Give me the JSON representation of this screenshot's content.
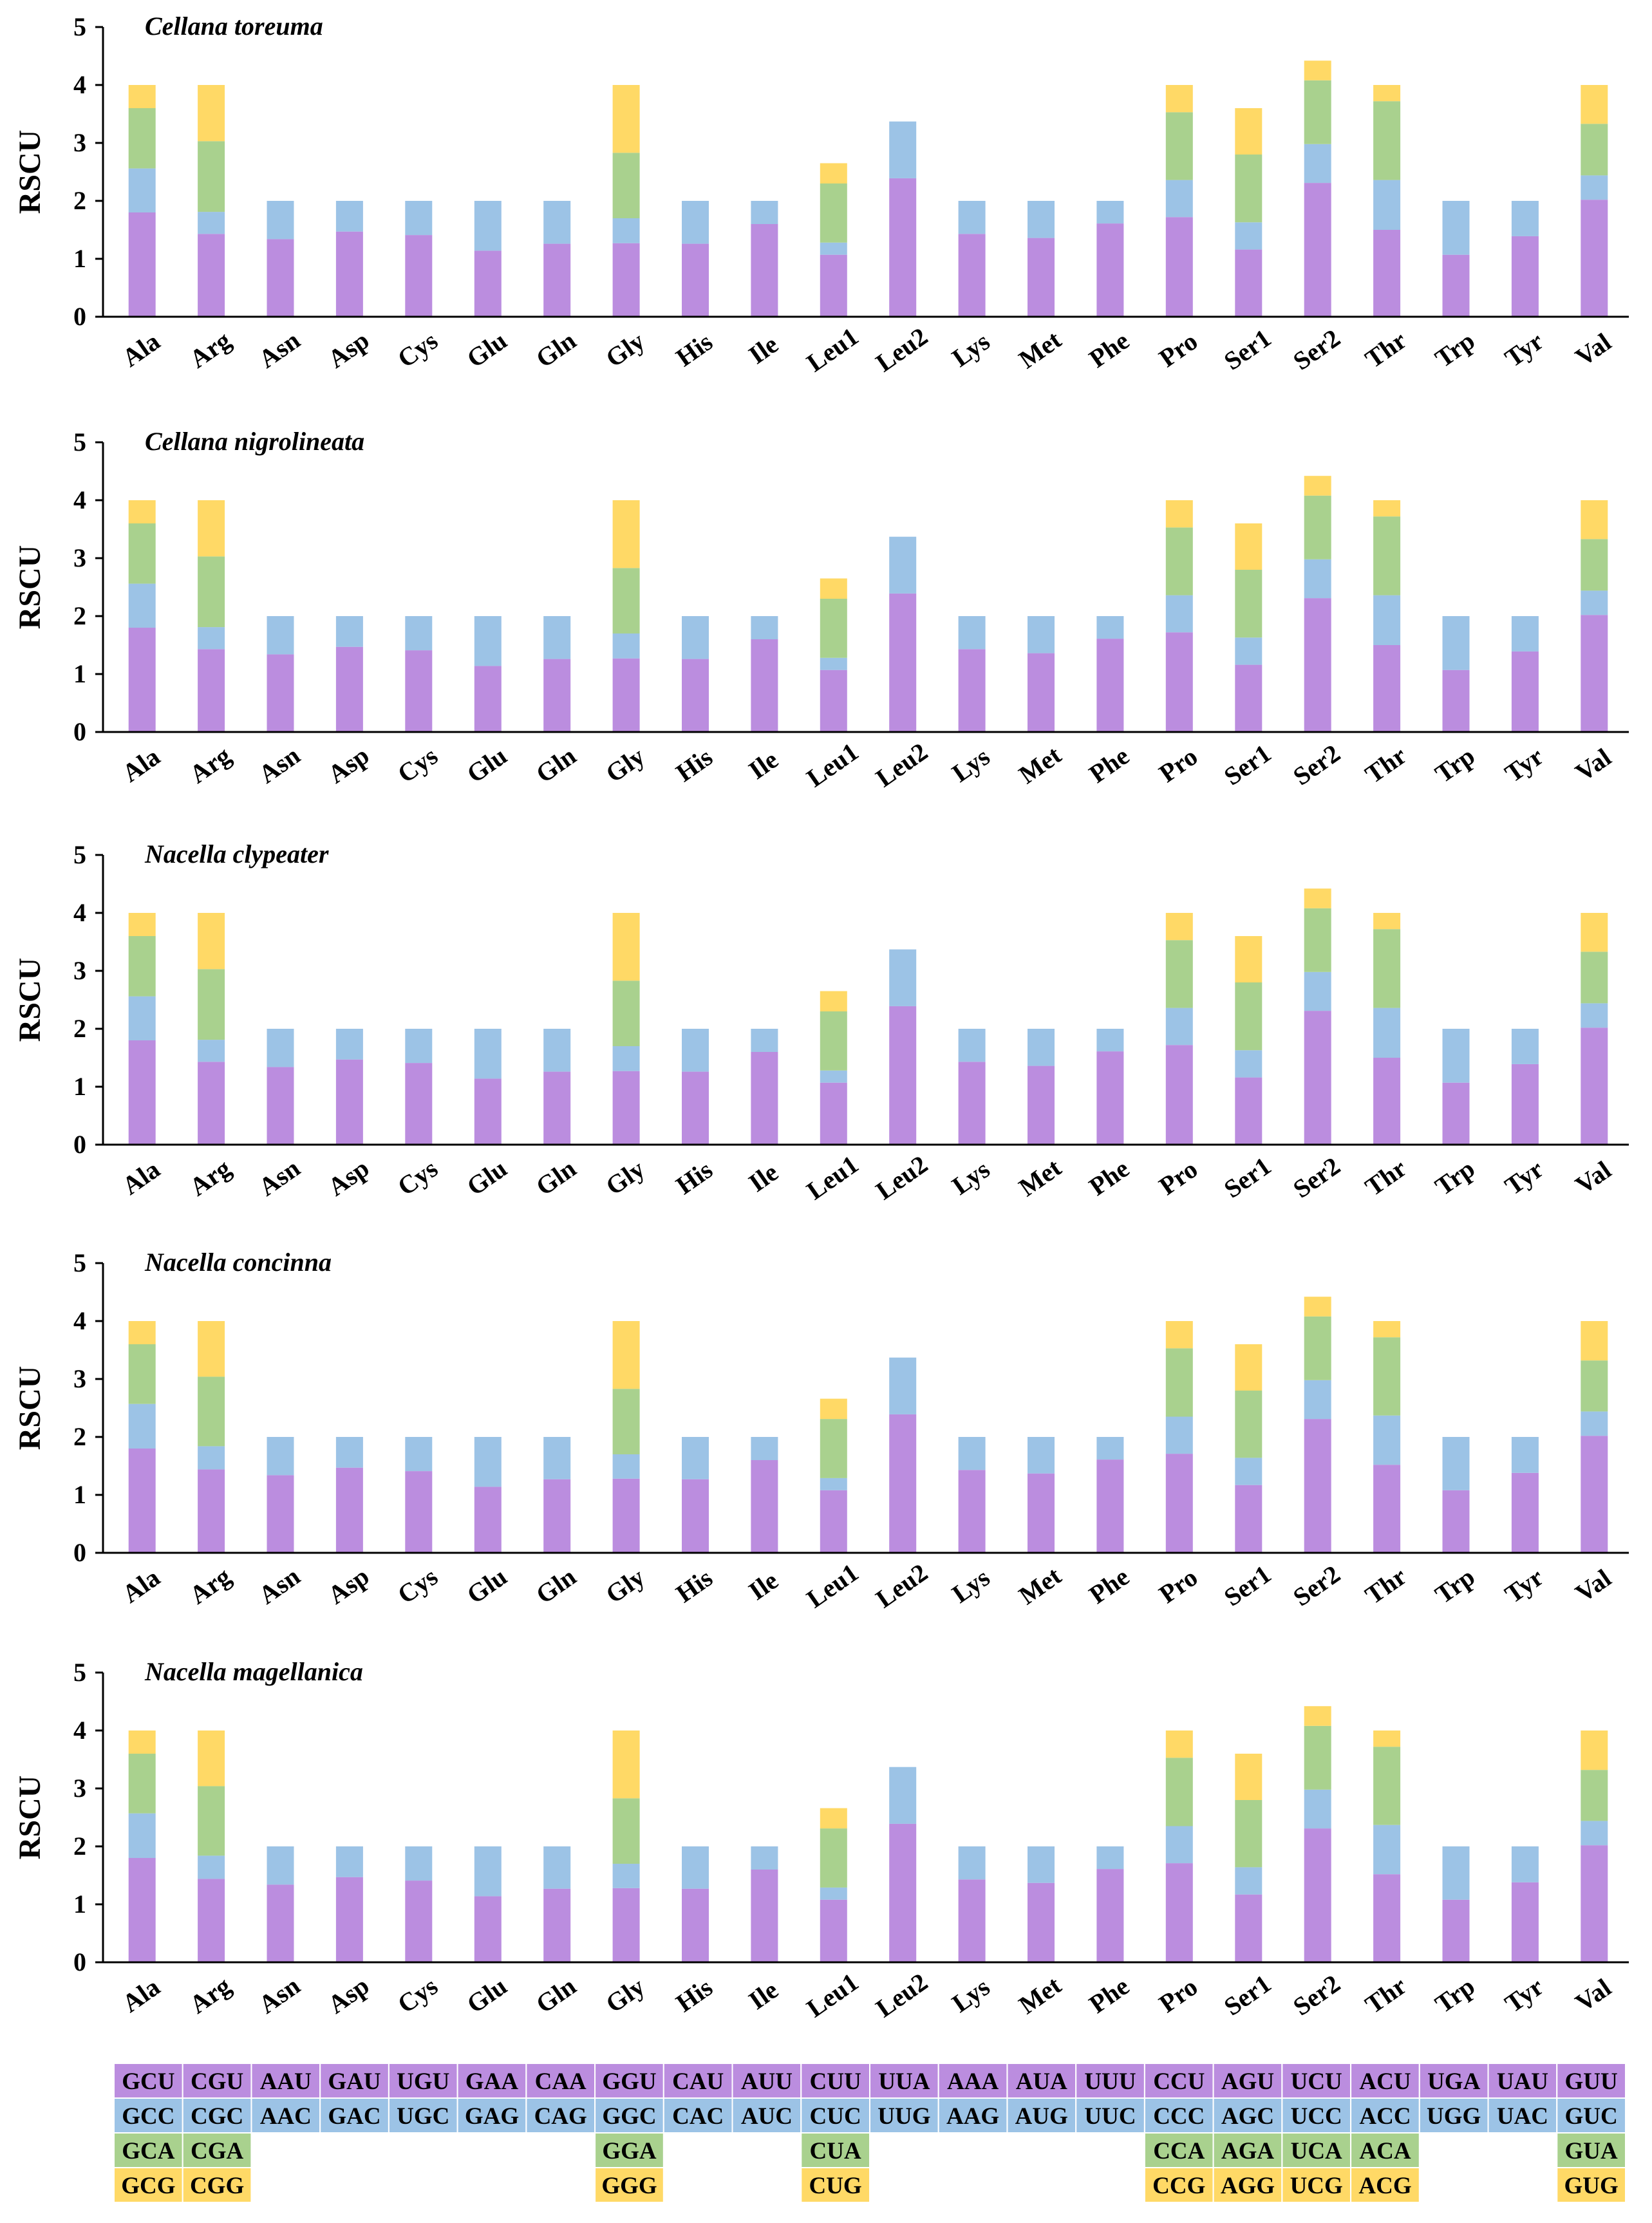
{
  "colors": {
    "purple": "#bb8ddf",
    "blue": "#9cc3e6",
    "green": "#a9d18e",
    "yellow": "#ffd966"
  },
  "ylabel": "RSCU",
  "amino_acids": [
    "Ala",
    "Arg",
    "Asn",
    "Asp",
    "Cys",
    "Glu",
    "Gln",
    "Gly",
    "His",
    "Ile",
    "Leu1",
    "Leu2",
    "Lys",
    "Met",
    "Phe",
    "Pro",
    "Ser1",
    "Ser2",
    "Thr",
    "Trp",
    "Tyr",
    "Val"
  ],
  "codon_table": [
    [
      "GCU",
      "CGU",
      "AAU",
      "GAU",
      "UGU",
      "GAA",
      "CAA",
      "GGU",
      "CAU",
      "AUU",
      "CUU",
      "UUA",
      "AAA",
      "AUA",
      "UUU",
      "CCU",
      "AGU",
      "UCU",
      "ACU",
      "UGA",
      "UAU",
      "GUU"
    ],
    [
      "GCC",
      "CGC",
      "AAC",
      "GAC",
      "UGC",
      "GAG",
      "CAG",
      "GGC",
      "CAC",
      "AUC",
      "CUC",
      "UUG",
      "AAG",
      "AUG",
      "UUC",
      "CCC",
      "AGC",
      "UCC",
      "ACC",
      "UGG",
      "UAC",
      "GUC"
    ],
    [
      "GCA",
      "CGA",
      "",
      "",
      "",
      "",
      "",
      "GGA",
      "",
      "",
      "CUA",
      "",
      "",
      "",
      "",
      "CCA",
      "AGA",
      "UCA",
      "ACA",
      "",
      "",
      "GUA"
    ],
    [
      "GCG",
      "CGG",
      "",
      "",
      "",
      "",
      "",
      "GGG",
      "",
      "",
      "CUG",
      "",
      "",
      "",
      "",
      "CCG",
      "AGG",
      "UCG",
      "ACG",
      "",
      "",
      "GUG"
    ]
  ],
  "chart_data": [
    {
      "type": "bar",
      "stacked": true,
      "title": "Cellana toreuma",
      "ylabel": "RSCU",
      "ylim": [
        0,
        5
      ],
      "yticks": [
        "0",
        "1",
        "2",
        "3",
        "4",
        "5"
      ],
      "categories": [
        "Ala",
        "Arg",
        "Asn",
        "Asp",
        "Cys",
        "Glu",
        "Gln",
        "Gly",
        "His",
        "Ile",
        "Leu1",
        "Leu2",
        "Lys",
        "Met",
        "Phe",
        "Pro",
        "Ser1",
        "Ser2",
        "Thr",
        "Trp",
        "Tyr",
        "Val"
      ],
      "stacks": [
        [
          1.8,
          0.76,
          1.04,
          0.4
        ],
        [
          1.43,
          0.38,
          1.22,
          0.97
        ],
        [
          1.34,
          0.66
        ],
        [
          1.47,
          0.53
        ],
        [
          1.41,
          0.59
        ],
        [
          1.14,
          0.86
        ],
        [
          1.26,
          0.74
        ],
        [
          1.27,
          0.43,
          1.13,
          1.17
        ],
        [
          1.26,
          0.74
        ],
        [
          1.6,
          0.4
        ],
        [
          1.07,
          0.21,
          1.02,
          0.35
        ],
        [
          2.39,
          0.98
        ],
        [
          1.43,
          0.57
        ],
        [
          1.36,
          0.64
        ],
        [
          1.61,
          0.39
        ],
        [
          1.72,
          0.64,
          1.17,
          0.47
        ],
        [
          1.16,
          0.47,
          1.17,
          0.8
        ],
        [
          2.31,
          0.67,
          1.1,
          0.34
        ],
        [
          1.5,
          0.86,
          1.36,
          0.28
        ],
        [
          1.07,
          0.93
        ],
        [
          1.39,
          0.61
        ],
        [
          2.02,
          0.42,
          0.89,
          0.67
        ]
      ]
    },
    {
      "type": "bar",
      "stacked": true,
      "title": "Cellana nigrolineata",
      "ylabel": "RSCU",
      "ylim": [
        0,
        5
      ],
      "yticks": [
        "0",
        "1",
        "2",
        "3",
        "4",
        "5"
      ],
      "categories": [
        "Ala",
        "Arg",
        "Asn",
        "Asp",
        "Cys",
        "Glu",
        "Gln",
        "Gly",
        "His",
        "Ile",
        "Leu1",
        "Leu2",
        "Lys",
        "Met",
        "Phe",
        "Pro",
        "Ser1",
        "Ser2",
        "Thr",
        "Trp",
        "Tyr",
        "Val"
      ],
      "stacks": [
        [
          1.8,
          0.76,
          1.04,
          0.4
        ],
        [
          1.43,
          0.38,
          1.22,
          0.97
        ],
        [
          1.34,
          0.66
        ],
        [
          1.47,
          0.53
        ],
        [
          1.41,
          0.59
        ],
        [
          1.14,
          0.86
        ],
        [
          1.26,
          0.74
        ],
        [
          1.27,
          0.43,
          1.13,
          1.17
        ],
        [
          1.26,
          0.74
        ],
        [
          1.6,
          0.4
        ],
        [
          1.07,
          0.21,
          1.02,
          0.35
        ],
        [
          2.39,
          0.98
        ],
        [
          1.43,
          0.57
        ],
        [
          1.36,
          0.64
        ],
        [
          1.61,
          0.39
        ],
        [
          1.72,
          0.64,
          1.17,
          0.47
        ],
        [
          1.16,
          0.47,
          1.17,
          0.8
        ],
        [
          2.31,
          0.67,
          1.1,
          0.34
        ],
        [
          1.5,
          0.86,
          1.36,
          0.28
        ],
        [
          1.07,
          0.93
        ],
        [
          1.39,
          0.61
        ],
        [
          2.02,
          0.42,
          0.89,
          0.67
        ]
      ]
    },
    {
      "type": "bar",
      "stacked": true,
      "title": "Nacella clypeater",
      "ylabel": "RSCU",
      "ylim": [
        0,
        5
      ],
      "yticks": [
        "0",
        "1",
        "2",
        "3",
        "4",
        "5"
      ],
      "categories": [
        "Ala",
        "Arg",
        "Asn",
        "Asp",
        "Cys",
        "Glu",
        "Gln",
        "Gly",
        "His",
        "Ile",
        "Leu1",
        "Leu2",
        "Lys",
        "Met",
        "Phe",
        "Pro",
        "Ser1",
        "Ser2",
        "Thr",
        "Trp",
        "Tyr",
        "Val"
      ],
      "stacks": [
        [
          1.8,
          0.76,
          1.04,
          0.4
        ],
        [
          1.43,
          0.38,
          1.22,
          0.97
        ],
        [
          1.34,
          0.66
        ],
        [
          1.47,
          0.53
        ],
        [
          1.41,
          0.59
        ],
        [
          1.14,
          0.86
        ],
        [
          1.26,
          0.74
        ],
        [
          1.27,
          0.43,
          1.13,
          1.17
        ],
        [
          1.26,
          0.74
        ],
        [
          1.6,
          0.4
        ],
        [
          1.07,
          0.21,
          1.02,
          0.35
        ],
        [
          2.39,
          0.98
        ],
        [
          1.43,
          0.57
        ],
        [
          1.36,
          0.64
        ],
        [
          1.61,
          0.39
        ],
        [
          1.72,
          0.64,
          1.17,
          0.47
        ],
        [
          1.16,
          0.47,
          1.17,
          0.8
        ],
        [
          2.31,
          0.67,
          1.1,
          0.34
        ],
        [
          1.5,
          0.86,
          1.36,
          0.28
        ],
        [
          1.07,
          0.93
        ],
        [
          1.39,
          0.61
        ],
        [
          2.02,
          0.42,
          0.89,
          0.67
        ]
      ]
    },
    {
      "type": "bar",
      "stacked": true,
      "title": "Nacella concinna",
      "ylabel": "RSCU",
      "ylim": [
        0,
        5
      ],
      "yticks": [
        "0",
        "1",
        "2",
        "3",
        "4",
        "5"
      ],
      "categories": [
        "Ala",
        "Arg",
        "Asn",
        "Asp",
        "Cys",
        "Glu",
        "Gln",
        "Gly",
        "His",
        "Ile",
        "Leu1",
        "Leu2",
        "Lys",
        "Met",
        "Phe",
        "Pro",
        "Ser1",
        "Ser2",
        "Thr",
        "Trp",
        "Tyr",
        "Val"
      ],
      "stacks": [
        [
          1.8,
          0.77,
          1.03,
          0.4
        ],
        [
          1.44,
          0.4,
          1.2,
          0.96
        ],
        [
          1.34,
          0.66
        ],
        [
          1.47,
          0.53
        ],
        [
          1.41,
          0.59
        ],
        [
          1.14,
          0.86
        ],
        [
          1.27,
          0.73
        ],
        [
          1.28,
          0.42,
          1.13,
          1.17
        ],
        [
          1.27,
          0.73
        ],
        [
          1.6,
          0.4
        ],
        [
          1.08,
          0.21,
          1.02,
          0.35
        ],
        [
          2.39,
          0.98
        ],
        [
          1.43,
          0.57
        ],
        [
          1.37,
          0.63
        ],
        [
          1.61,
          0.39
        ],
        [
          1.71,
          0.64,
          1.18,
          0.47
        ],
        [
          1.17,
          0.47,
          1.16,
          0.8
        ],
        [
          2.31,
          0.67,
          1.1,
          0.34
        ],
        [
          1.52,
          0.85,
          1.35,
          0.28
        ],
        [
          1.08,
          0.92
        ],
        [
          1.38,
          0.62
        ],
        [
          2.02,
          0.42,
          0.88,
          0.68
        ]
      ]
    },
    {
      "type": "bar",
      "stacked": true,
      "title": "Nacella magellanica",
      "ylabel": "RSCU",
      "ylim": [
        0,
        5
      ],
      "yticks": [
        "0",
        "1",
        "2",
        "3",
        "4",
        "5"
      ],
      "categories": [
        "Ala",
        "Arg",
        "Asn",
        "Asp",
        "Cys",
        "Glu",
        "Gln",
        "Gly",
        "His",
        "Ile",
        "Leu1",
        "Leu2",
        "Lys",
        "Met",
        "Phe",
        "Pro",
        "Ser1",
        "Ser2",
        "Thr",
        "Trp",
        "Tyr",
        "Val"
      ],
      "stacks": [
        [
          1.8,
          0.77,
          1.03,
          0.4
        ],
        [
          1.44,
          0.4,
          1.2,
          0.96
        ],
        [
          1.34,
          0.66
        ],
        [
          1.47,
          0.53
        ],
        [
          1.41,
          0.59
        ],
        [
          1.14,
          0.86
        ],
        [
          1.27,
          0.73
        ],
        [
          1.28,
          0.42,
          1.13,
          1.17
        ],
        [
          1.27,
          0.73
        ],
        [
          1.6,
          0.4
        ],
        [
          1.08,
          0.21,
          1.02,
          0.35
        ],
        [
          2.39,
          0.98
        ],
        [
          1.43,
          0.57
        ],
        [
          1.37,
          0.63
        ],
        [
          1.61,
          0.39
        ],
        [
          1.71,
          0.64,
          1.18,
          0.47
        ],
        [
          1.17,
          0.47,
          1.16,
          0.8
        ],
        [
          2.31,
          0.67,
          1.1,
          0.34
        ],
        [
          1.52,
          0.85,
          1.35,
          0.28
        ],
        [
          1.08,
          0.92
        ],
        [
          1.38,
          0.62
        ],
        [
          2.02,
          0.42,
          0.88,
          0.68
        ]
      ]
    }
  ]
}
